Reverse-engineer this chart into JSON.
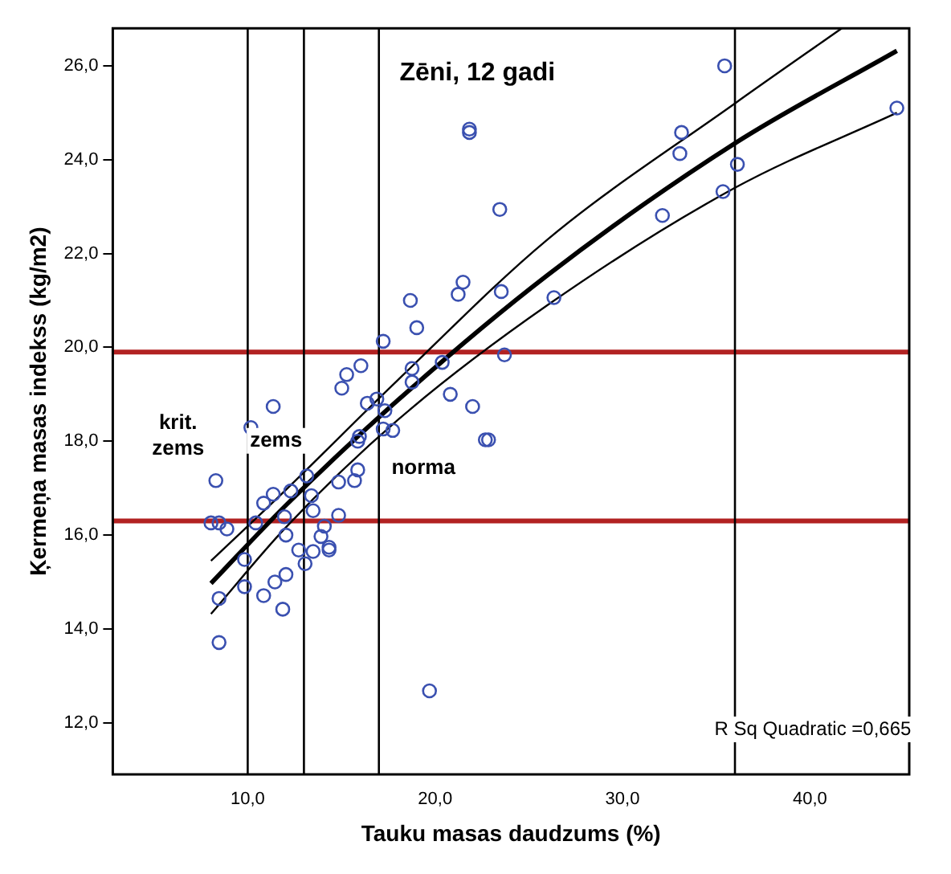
{
  "chart_data": {
    "type": "scatter",
    "title": "Zēni, 12 gadi",
    "xlabel": "Tauku masas daudzums (%)",
    "ylabel": "Ķermeņa masas indekss (kg/m2)",
    "xlim": [
      2.8,
      45.3
    ],
    "ylim": [
      10.9,
      26.8
    ],
    "xticks": [
      {
        "value": 10,
        "label": "10,0"
      },
      {
        "value": 20,
        "label": "20,0"
      },
      {
        "value": 30,
        "label": "30,0"
      },
      {
        "value": 40,
        "label": "40,0"
      }
    ],
    "yticks": [
      {
        "value": 12,
        "label": "12,0"
      },
      {
        "value": 14,
        "label": "14,0"
      },
      {
        "value": 16,
        "label": "16,0"
      },
      {
        "value": 18,
        "label": "18,0"
      },
      {
        "value": 20,
        "label": "20,0"
      },
      {
        "value": 22,
        "label": "22,0"
      },
      {
        "value": 24,
        "label": "24,0"
      },
      {
        "value": 26,
        "label": "26,0"
      }
    ],
    "grid": false,
    "legend": false,
    "series": [
      {
        "marker": "circle",
        "color": "#3a50b0",
        "x": [
          8.3,
          8.04,
          8.47,
          8.89,
          8.47,
          8.47,
          9.83,
          9.83,
          10.17,
          10.43,
          10.85,
          11.36,
          11.36,
          11.45,
          10.85,
          11.87,
          12.04,
          12.04,
          11.96,
          12.3,
          12.72,
          13.06,
          13.15,
          13.4,
          13.49,
          13.49,
          13.91,
          14.09,
          14.34,
          14.34,
          14.85,
          14.85,
          15.02,
          15.28,
          16.04,
          15.7,
          15.87,
          15.96,
          15.87,
          16.38,
          16.89,
          17.23,
          17.32,
          17.23,
          17.74,
          18.68,
          19.02,
          21.23,
          21.49,
          23.53,
          23.45,
          21.83,
          21.83,
          26.34,
          23.7,
          18.77,
          18.77,
          20.38,
          20.81,
          22.0,
          22.85,
          22.68,
          19.7,
          32.13,
          33.06,
          33.15,
          35.45,
          35.36,
          36.13,
          44.64
        ],
        "values": [
          17.16,
          16.26,
          16.26,
          16.13,
          14.65,
          13.71,
          15.48,
          14.9,
          18.29,
          16.26,
          16.68,
          18.74,
          16.87,
          15.0,
          14.71,
          14.42,
          16.0,
          15.16,
          16.39,
          16.94,
          15.68,
          15.39,
          17.26,
          16.84,
          16.52,
          15.65,
          15.97,
          16.19,
          15.68,
          15.74,
          17.13,
          16.42,
          19.13,
          19.42,
          19.61,
          17.16,
          17.39,
          18.1,
          18.0,
          18.81,
          18.9,
          20.13,
          18.65,
          18.26,
          18.23,
          21.0,
          20.42,
          21.13,
          21.39,
          21.19,
          22.94,
          24.65,
          24.58,
          21.06,
          19.84,
          19.55,
          19.26,
          19.68,
          19.0,
          18.74,
          18.03,
          18.03,
          12.68,
          22.81,
          24.13,
          24.58,
          26.0,
          23.32,
          23.9,
          25.1
        ]
      },
      {
        "type": "line",
        "color": "#000000",
        "x": [
          8.04,
          12,
          18,
          26,
          36,
          44.64
        ],
        "values": [
          14.97,
          16.62,
          18.87,
          21.54,
          24.35,
          26.32
        ]
      },
      {
        "type": "line",
        "color": "#000000",
        "x": [
          8.04,
          12,
          18,
          26,
          36,
          41.7
        ],
        "values": [
          15.45,
          16.95,
          19.3,
          22.3,
          25.2,
          26.8
        ]
      },
      {
        "type": "line",
        "color": "#000000",
        "x": [
          8.04,
          12,
          18,
          26,
          36,
          44.64
        ],
        "values": [
          14.32,
          16.15,
          18.45,
          20.9,
          23.4,
          25.0
        ]
      }
    ],
    "ref_lines": [
      {
        "axis": "y",
        "value": 19.9,
        "color": "#b22222"
      },
      {
        "axis": "y",
        "value": 16.3,
        "color": "#b22222"
      },
      {
        "axis": "x",
        "value": 10,
        "color": "#000000"
      },
      {
        "axis": "x",
        "value": 13,
        "color": "#000000"
      },
      {
        "axis": "x",
        "value": 17,
        "color": "#000000"
      },
      {
        "axis": "x",
        "value": 36,
        "color": "#000000"
      }
    ],
    "annotations": [
      "krit.\nzems",
      "zems",
      "norma",
      "R Sq Quadratic =0,665"
    ]
  }
}
